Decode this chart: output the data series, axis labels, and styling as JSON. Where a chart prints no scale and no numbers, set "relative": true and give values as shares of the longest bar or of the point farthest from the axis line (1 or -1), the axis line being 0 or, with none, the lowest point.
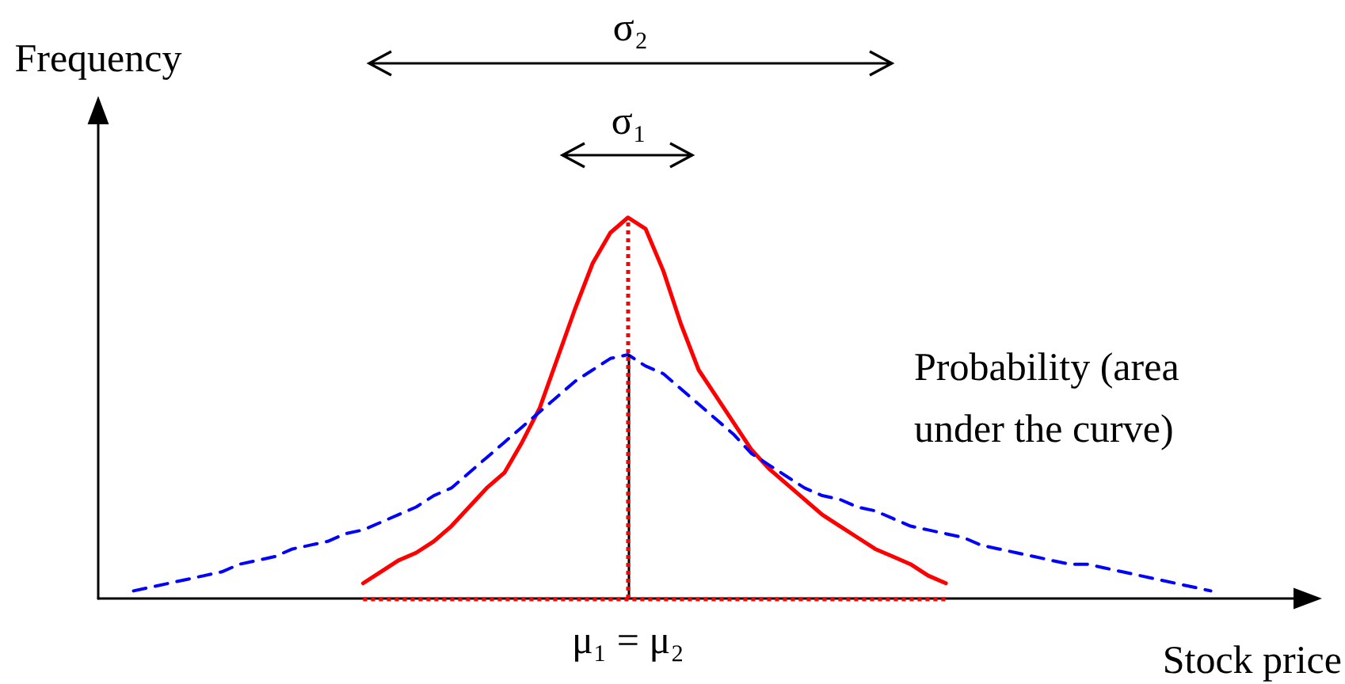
{
  "chart_data": {
    "type": "line",
    "relative": true,
    "ylabel": "Frequency",
    "xlabel": "Stock price",
    "categories": [
      null,
      null,
      null,
      null,
      null,
      null,
      null,
      null,
      null,
      null,
      null,
      null,
      null,
      null,
      null,
      null,
      null,
      null,
      null,
      null,
      null,
      null,
      null,
      null,
      null,
      null,
      null,
      null,
      null,
      null,
      null,
      null,
      null,
      null,
      null,
      null,
      null,
      null,
      null,
      null,
      null,
      null,
      null,
      null,
      null,
      null,
      null,
      null,
      null,
      null,
      null,
      null,
      null,
      null,
      null,
      null,
      null,
      null,
      null,
      null,
      null,
      null,
      null,
      null,
      null,
      null,
      null,
      null,
      null
    ],
    "series": [
      {
        "color": "#ff0000",
        "line_style": "solid",
        "values": [
          null,
          null,
          null,
          null,
          null,
          null,
          null,
          null,
          null,
          null,
          null,
          null,
          null,
          null,
          null,
          0.04,
          0.07,
          0.1,
          0.12,
          0.15,
          0.19,
          0.24,
          0.29,
          0.33,
          0.41,
          0.5,
          0.63,
          0.76,
          0.88,
          0.96,
          1,
          0.97,
          0.86,
          0.72,
          0.6,
          0.53,
          0.46,
          0.39,
          0.34,
          0.3,
          0.26,
          0.22,
          0.19,
          0.16,
          0.13,
          0.11,
          0.09,
          0.06,
          0.04,
          null,
          null,
          null,
          null,
          null,
          null,
          null,
          null,
          null,
          null,
          null,
          null,
          null,
          null,
          null,
          null,
          null,
          null,
          null,
          null
        ]
      },
      {
        "color": "#0000ff",
        "line_style": "dashed",
        "values": [
          null,
          null,
          0.02,
          0.03,
          0.04,
          0.05,
          0.06,
          0.07,
          0.09,
          0.1,
          0.11,
          0.13,
          0.14,
          0.15,
          0.17,
          0.18,
          0.2,
          0.22,
          0.24,
          0.27,
          0.29,
          0.33,
          0.37,
          0.41,
          0.45,
          0.49,
          0.53,
          0.57,
          0.6,
          0.63,
          0.64,
          0.61,
          0.59,
          0.55,
          0.51,
          0.47,
          0.43,
          0.38,
          0.35,
          0.32,
          0.29,
          0.27,
          0.26,
          0.24,
          0.23,
          0.21,
          0.19,
          0.18,
          0.17,
          0.16,
          0.14,
          0.13,
          0.12,
          0.11,
          0.1,
          0.09,
          0.09,
          0.08,
          0.07,
          0.06,
          0.05,
          0.04,
          0.03,
          0.02,
          null,
          null,
          null,
          null,
          null
        ]
      }
    ],
    "ref_lines": [
      {
        "axis": "y",
        "value": 0,
        "color": "#ff0000",
        "line_style": "dotted"
      }
    ],
    "annotations": [
      "σ₂",
      "σ₁",
      "μ₁ = μ₂",
      "Probability (area under the curve)"
    ]
  }
}
